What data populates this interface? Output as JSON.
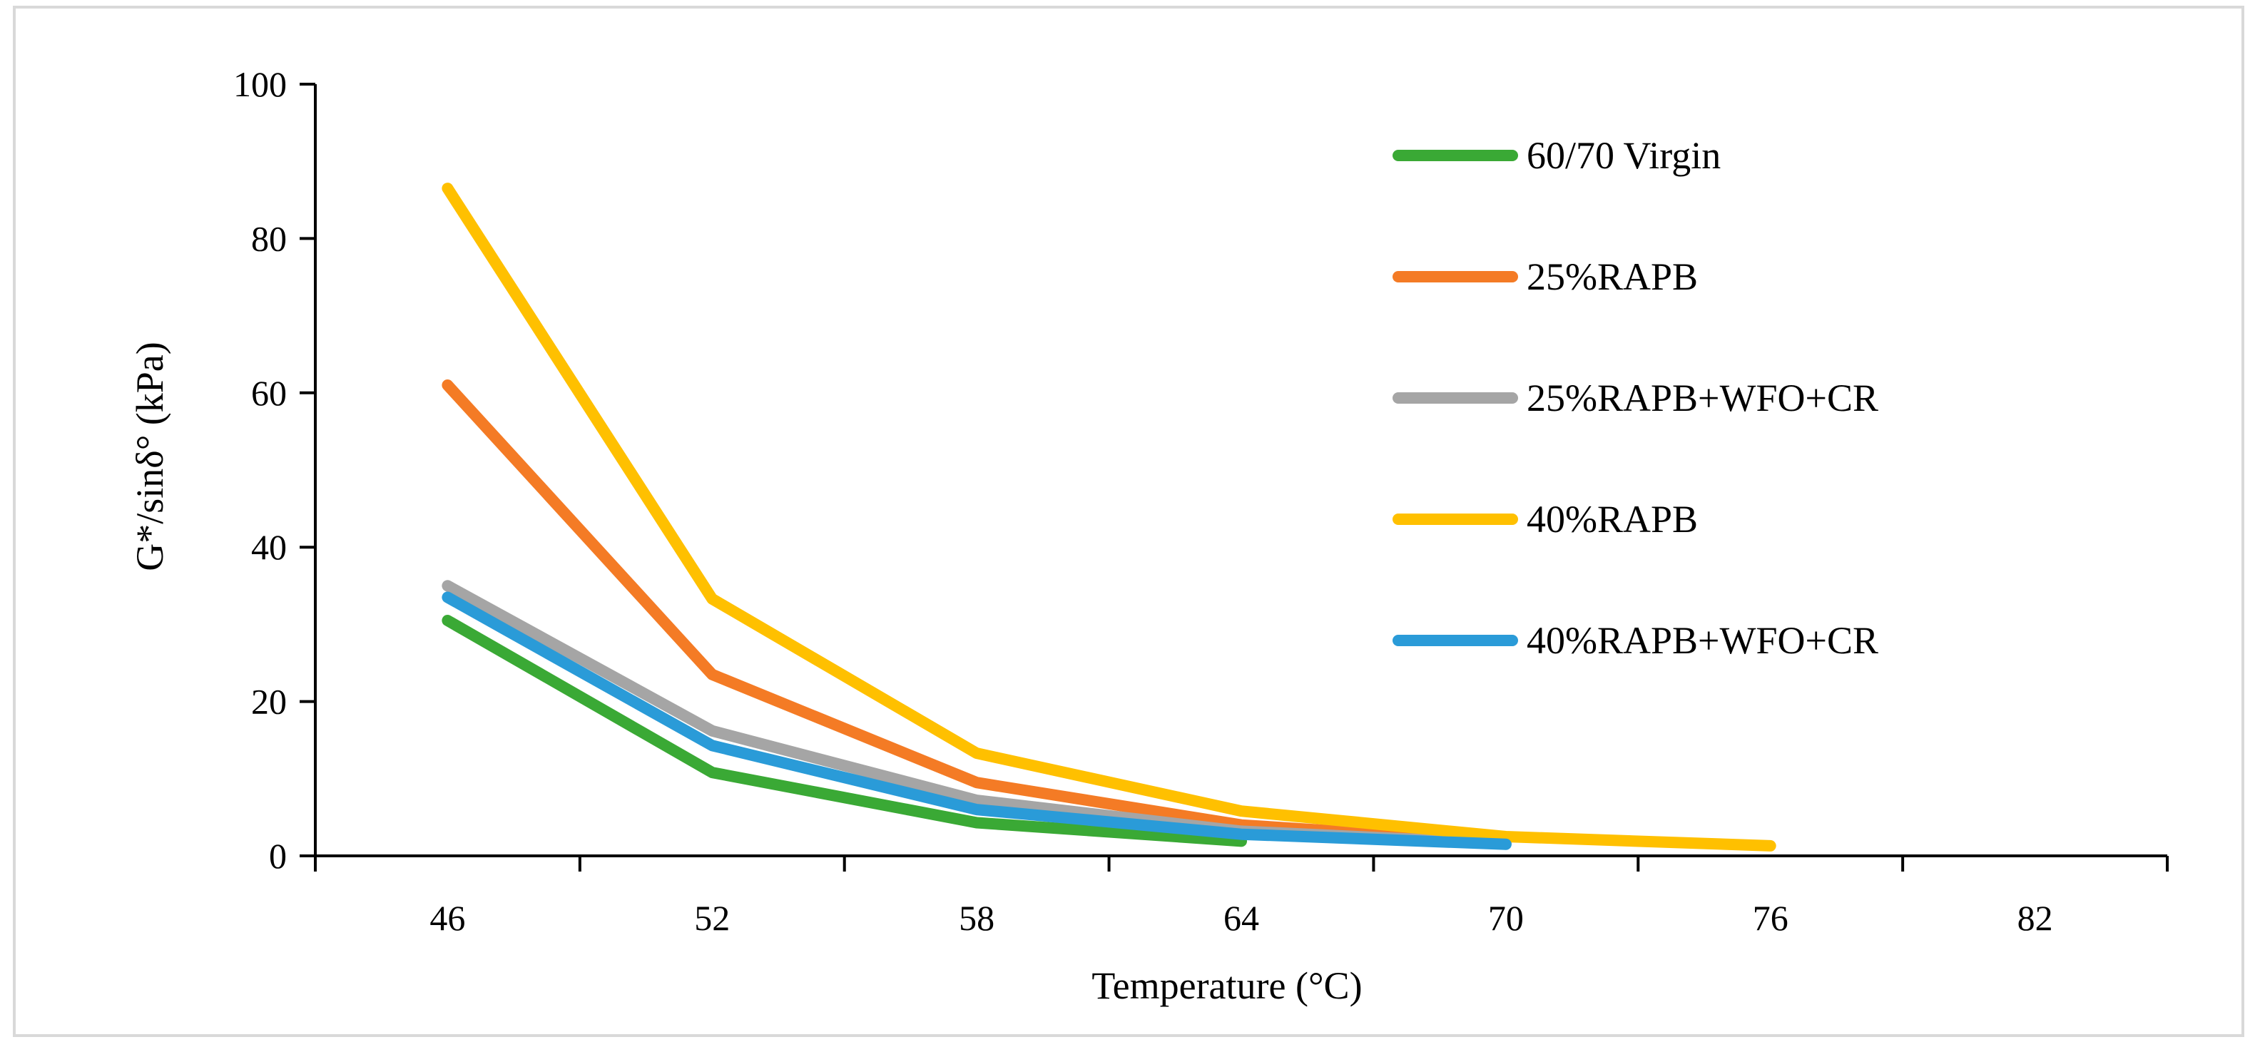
{
  "chart_data": {
    "type": "line",
    "title": "",
    "xlabel": "Temperature (°C)",
    "ylabel": "G*/sinδ° (kPa)",
    "categories": [
      "46",
      "52",
      "58",
      "64",
      "70",
      "76",
      "82"
    ],
    "ylim": [
      0,
      100
    ],
    "yticks": [
      0,
      20,
      40,
      60,
      80,
      100
    ],
    "grid": false,
    "legend_position": "right",
    "series": [
      {
        "name": "60/70 Virgin",
        "color": "#3aa935",
        "values": [
          30.5,
          10.8,
          4.3,
          1.9,
          null,
          null,
          null
        ]
      },
      {
        "name": "25%RAPB",
        "color": "#f47b25",
        "values": [
          61.0,
          23.5,
          9.5,
          4.0,
          1.8,
          null,
          null
        ]
      },
      {
        "name": "25%RAPB+WFO+CR",
        "color": "#a5a5a5",
        "values": [
          35.0,
          16.2,
          7.2,
          3.2,
          1.6,
          null,
          null
        ]
      },
      {
        "name": "40%RAPB",
        "color": "#ffc000",
        "values": [
          86.5,
          33.3,
          13.3,
          5.8,
          2.5,
          1.3,
          null
        ]
      },
      {
        "name": "40%RAPB+WFO+CR",
        "color": "#2a9bd8",
        "values": [
          33.5,
          14.3,
          6.0,
          2.8,
          1.5,
          null,
          null
        ]
      }
    ]
  }
}
